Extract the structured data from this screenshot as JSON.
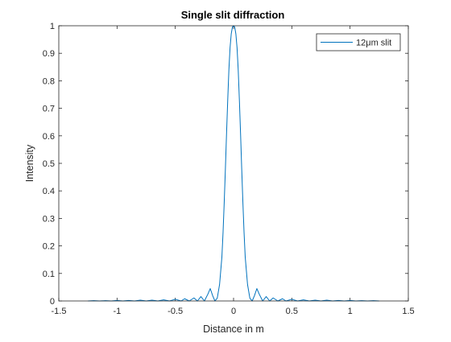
{
  "chart_data": {
    "type": "line",
    "title": "Single slit diffraction",
    "xlabel": "Distance in m",
    "ylabel": "Intensity",
    "xlim": [
      -1.5,
      1.5
    ],
    "ylim": [
      0,
      1
    ],
    "xticks": [
      -1.5,
      -1,
      -0.5,
      0,
      0.5,
      1,
      1.5
    ],
    "xtick_labels": [
      "-1.5",
      "-1",
      "-0.5",
      "0",
      "0.5",
      "1",
      "1.5"
    ],
    "yticks": [
      0,
      0.1,
      0.2,
      0.3,
      0.4,
      0.5,
      0.6,
      0.7,
      0.8,
      0.9,
      1
    ],
    "ytick_labels": [
      "0",
      "0.1",
      "0.2",
      "0.3",
      "0.4",
      "0.5",
      "0.6",
      "0.7",
      "0.8",
      "0.9",
      "1"
    ],
    "grid": false,
    "legend_position": "top-right",
    "series": [
      {
        "name": "12μm slit",
        "color": "#0072BD",
        "x": [
          -1.25,
          -1.2,
          -1.15,
          -1.1,
          -1.05,
          -1.0,
          -0.95,
          -0.9,
          -0.85,
          -0.8,
          -0.75,
          -0.7,
          -0.65,
          -0.6,
          -0.55,
          -0.5,
          -0.45,
          -0.42,
          -0.38,
          -0.34,
          -0.31,
          -0.28,
          -0.25,
          -0.22,
          -0.2,
          -0.18,
          -0.16,
          -0.14,
          -0.12,
          -0.1,
          -0.09,
          -0.08,
          -0.07,
          -0.06,
          -0.05,
          -0.04,
          -0.03,
          -0.02,
          -0.01,
          0.0,
          0.01,
          0.02,
          0.03,
          0.04,
          0.05,
          0.06,
          0.07,
          0.08,
          0.09,
          0.1,
          0.12,
          0.14,
          0.16,
          0.18,
          0.2,
          0.22,
          0.25,
          0.28,
          0.31,
          0.34,
          0.38,
          0.42,
          0.45,
          0.5,
          0.55,
          0.6,
          0.65,
          0.7,
          0.75,
          0.8,
          0.85,
          0.9,
          0.95,
          1.0,
          1.05,
          1.1,
          1.15,
          1.2,
          1.25
        ],
        "y": [
          0.0,
          0.001,
          0.0,
          0.001,
          0.0,
          0.002,
          0.0,
          0.002,
          0.0,
          0.003,
          0.0,
          0.003,
          0.0,
          0.004,
          0.0,
          0.006,
          0.0,
          0.008,
          0.0,
          0.011,
          0.0,
          0.016,
          0.0,
          0.025,
          0.045,
          0.02,
          0.0,
          0.01,
          0.06,
          0.16,
          0.25,
          0.36,
          0.48,
          0.61,
          0.73,
          0.84,
          0.92,
          0.97,
          0.995,
          1.0,
          0.995,
          0.97,
          0.92,
          0.84,
          0.73,
          0.61,
          0.48,
          0.36,
          0.25,
          0.16,
          0.06,
          0.01,
          0.0,
          0.02,
          0.045,
          0.025,
          0.0,
          0.016,
          0.0,
          0.011,
          0.0,
          0.008,
          0.0,
          0.006,
          0.0,
          0.004,
          0.0,
          0.003,
          0.0,
          0.003,
          0.0,
          0.002,
          0.0,
          0.002,
          0.0,
          0.001,
          0.0,
          0.001,
          0.0
        ]
      }
    ]
  }
}
